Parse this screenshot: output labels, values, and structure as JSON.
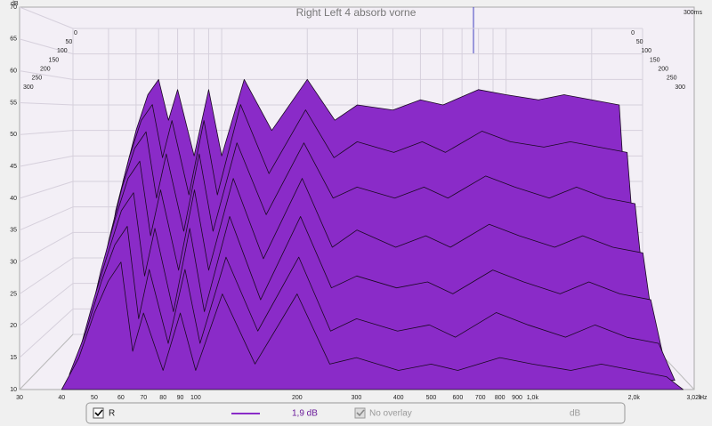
{
  "chart_data": {
    "type": "waterfall",
    "title": "Right Left 4 absorb vorne",
    "y_unit": "dB",
    "x_unit": "Hz",
    "time_label": "300ms",
    "color": "#8a2bc8",
    "xlim": [
      30,
      3020
    ],
    "ylim": [
      10,
      70
    ],
    "tlim": [
      0,
      300
    ],
    "log_x": true,
    "grid": true,
    "yticks": [
      10,
      15,
      20,
      25,
      30,
      35,
      40,
      45,
      50,
      55,
      60,
      65,
      70
    ],
    "tticks": [
      0,
      50,
      100,
      150,
      200,
      250,
      300
    ],
    "xticks": [
      30,
      40,
      50,
      60,
      70,
      80,
      90,
      100,
      200,
      300,
      400,
      500,
      600,
      700,
      800,
      900,
      {
        "value": 1000,
        "label": "1,0k"
      },
      {
        "value": 2000,
        "label": "2,0k"
      },
      {
        "value": 3020,
        "label": "3,02k"
      }
    ],
    "x": [
      40,
      45,
      50,
      55,
      60,
      65,
      70,
      80,
      90,
      100,
      120,
      150,
      200,
      250,
      300,
      400,
      500,
      600,
      800,
      1000,
      1300,
      1600,
      2000,
      2500,
      2800
    ],
    "slices": [
      {
        "time": 0,
        "values": [
          20,
          40,
          50,
          57,
          60,
          52,
          58,
          45,
          58,
          45,
          60,
          50,
          60,
          52,
          55,
          54,
          56,
          55,
          58,
          57,
          56,
          57,
          56,
          55,
          12
        ]
      },
      {
        "time": 50,
        "values": [
          18,
          35,
          45,
          52,
          55,
          45,
          52,
          38,
          52,
          38,
          55,
          42,
          54,
          45,
          48,
          46,
          48,
          46,
          50,
          48,
          47,
          48,
          47,
          46,
          11
        ]
      },
      {
        "time": 100,
        "values": [
          16,
          30,
          40,
          47,
          50,
          38,
          46,
          32,
          46,
          32,
          48,
          35,
          48,
          38,
          40,
          38,
          40,
          38,
          42,
          40,
          38,
          40,
          38,
          37,
          11
        ]
      },
      {
        "time": 150,
        "values": [
          14,
          26,
          35,
          42,
          45,
          32,
          40,
          26,
          40,
          26,
          42,
          28,
          42,
          30,
          33,
          30,
          32,
          30,
          34,
          32,
          30,
          32,
          30,
          29,
          10
        ]
      },
      {
        "time": 200,
        "values": [
          12,
          22,
          30,
          37,
          40,
          26,
          34,
          20,
          34,
          20,
          36,
          22,
          36,
          24,
          26,
          24,
          25,
          23,
          27,
          25,
          23,
          25,
          23,
          22,
          10
        ]
      },
      {
        "time": 250,
        "values": [
          11,
          18,
          26,
          32,
          35,
          20,
          28,
          16,
          28,
          16,
          30,
          18,
          30,
          18,
          20,
          18,
          19,
          17,
          21,
          19,
          17,
          19,
          17,
          16,
          10
        ]
      },
      {
        "time": 300,
        "values": [
          10,
          15,
          22,
          27,
          30,
          16,
          22,
          13,
          22,
          13,
          25,
          14,
          25,
          14,
          15,
          13,
          14,
          13,
          15,
          14,
          13,
          14,
          13,
          12,
          10
        ]
      }
    ],
    "legend": {
      "name": "R",
      "smoothing": "1,9 dB",
      "overlay": "No overlay",
      "unit": "dB"
    }
  }
}
